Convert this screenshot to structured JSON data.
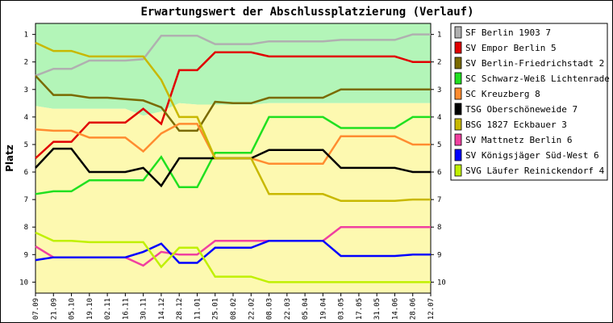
{
  "chart_data": {
    "type": "line",
    "title": "Erwartungswert der Abschlussplatzierung (Verlauf)",
    "xlabel": "",
    "ylabel": "Platz",
    "ylim": [
      0.6,
      10.4
    ],
    "y_inverted": true,
    "y_ticks": [
      "1",
      "2",
      "3",
      "4",
      "5",
      "6",
      "7",
      "8",
      "9",
      "10"
    ],
    "categories": [
      "07.09",
      "21.09",
      "05.10",
      "19.10",
      "02.11",
      "16.11",
      "30.11",
      "14.12",
      "28.12",
      "11.01",
      "25.01",
      "08.02",
      "22.02",
      "08.03",
      "22.03",
      "05.04",
      "19.04",
      "03.05",
      "17.05",
      "31.05",
      "14.06",
      "28.06",
      "12.07"
    ],
    "grid": false,
    "legend_position": "right",
    "background_zones": [
      {
        "color": "#b3f5b8",
        "upper_boundary": [
          1,
          1,
          1,
          1,
          1,
          1,
          1,
          1,
          1,
          1,
          1,
          1,
          1,
          1,
          1,
          1,
          1,
          1,
          1,
          1,
          1,
          1,
          1
        ],
        "lower_boundary": [
          3.6,
          3.7,
          3.7,
          3.7,
          3.7,
          3.7,
          3.95,
          3.8,
          3.5,
          3.55,
          3.55,
          3.55,
          3.55,
          3.5,
          3.5,
          3.5,
          3.5,
          3.5,
          3.5,
          3.5,
          3.5,
          3.5,
          3.5
        ]
      },
      {
        "color": "#fdf9b0",
        "upper_boundary": [
          3.6,
          3.7,
          3.7,
          3.7,
          3.7,
          3.7,
          3.95,
          3.8,
          3.5,
          3.55,
          3.55,
          3.55,
          3.55,
          3.5,
          3.5,
          3.5,
          3.5,
          3.5,
          3.5,
          3.5,
          3.5,
          3.5,
          3.5
        ],
        "lower_boundary": [
          10,
          10,
          10,
          10,
          10,
          10,
          10,
          10,
          10,
          10,
          10,
          10,
          10,
          10,
          10,
          10,
          10,
          10,
          10,
          10,
          10,
          10,
          10
        ]
      }
    ],
    "series": [
      {
        "name": "SF Berlin 1903 7",
        "color": "#b0b0b0",
        "values": [
          2.5,
          2.25,
          2.25,
          1.95,
          1.95,
          1.95,
          1.9,
          1.05,
          1.05,
          1.05,
          1.35,
          1.35,
          1.35,
          1.25,
          1.25,
          1.25,
          1.25,
          1.2,
          1.2,
          1.2,
          1.2,
          1.0,
          1.0
        ]
      },
      {
        "name": "SV Empor Berlin 5",
        "color": "#e00000",
        "values": [
          5.5,
          4.9,
          4.9,
          4.2,
          4.2,
          4.2,
          3.7,
          4.25,
          2.3,
          2.3,
          1.65,
          1.65,
          1.65,
          1.8,
          1.8,
          1.8,
          1.8,
          1.8,
          1.8,
          1.8,
          1.8,
          2.0,
          2.0
        ]
      },
      {
        "name": "SV Berlin-Friedrichstadt 2",
        "color": "#7a6a00",
        "values": [
          2.5,
          3.2,
          3.2,
          3.3,
          3.3,
          3.35,
          3.4,
          3.65,
          4.5,
          4.5,
          3.45,
          3.5,
          3.5,
          3.3,
          3.3,
          3.3,
          3.3,
          3.0,
          3.0,
          3.0,
          3.0,
          3.0,
          3.0
        ]
      },
      {
        "name": "SC Schwarz-Weiß Lichtenrade 4",
        "color": "#20e020",
        "values": [
          6.8,
          6.7,
          6.7,
          6.3,
          6.3,
          6.3,
          6.3,
          5.45,
          6.55,
          6.55,
          5.3,
          5.3,
          5.3,
          4.0,
          4.0,
          4.0,
          4.0,
          4.4,
          4.4,
          4.4,
          4.4,
          4.0,
          4.0
        ]
      },
      {
        "name": "SC Kreuzberg 8",
        "color": "#ff8c30",
        "values": [
          4.45,
          4.5,
          4.5,
          4.75,
          4.75,
          4.75,
          5.25,
          4.6,
          4.25,
          4.25,
          5.5,
          5.5,
          5.5,
          5.7,
          5.7,
          5.7,
          5.7,
          4.7,
          4.7,
          4.7,
          4.7,
          5.0,
          5.0
        ]
      },
      {
        "name": "TSG Oberschöneweide 7",
        "color": "#000000",
        "values": [
          5.85,
          5.15,
          5.15,
          6.0,
          6.0,
          6.0,
          5.85,
          6.5,
          5.5,
          5.5,
          5.5,
          5.5,
          5.5,
          5.2,
          5.2,
          5.2,
          5.2,
          5.85,
          5.85,
          5.85,
          5.85,
          6.0,
          6.0
        ]
      },
      {
        "name": "BSG 1827 Eckbauer 3",
        "color": "#c8b800",
        "values": [
          1.3,
          1.6,
          1.6,
          1.8,
          1.8,
          1.8,
          1.8,
          2.65,
          4.0,
          4.0,
          5.5,
          5.5,
          5.5,
          6.8,
          6.8,
          6.8,
          6.8,
          7.05,
          7.05,
          7.05,
          7.05,
          7.0,
          7.0
        ]
      },
      {
        "name": "SV Mattnetz Berlin 6",
        "color": "#f040a0",
        "values": [
          8.7,
          9.1,
          9.1,
          9.1,
          9.1,
          9.1,
          9.4,
          8.9,
          9.0,
          9.0,
          8.5,
          8.5,
          8.5,
          8.5,
          8.5,
          8.5,
          8.5,
          8.0,
          8.0,
          8.0,
          8.0,
          8.0,
          8.0
        ]
      },
      {
        "name": "SV Königsjäger Süd-West 6",
        "color": "#0000ff",
        "values": [
          9.2,
          9.1,
          9.1,
          9.1,
          9.1,
          9.1,
          8.9,
          8.6,
          9.3,
          9.3,
          8.75,
          8.75,
          8.75,
          8.5,
          8.5,
          8.5,
          8.5,
          9.05,
          9.05,
          9.05,
          9.05,
          9.0,
          9.0
        ]
      },
      {
        "name": "SVG Läufer Reinickendorf 4",
        "color": "#c0f000",
        "values": [
          8.2,
          8.5,
          8.5,
          8.55,
          8.55,
          8.55,
          8.55,
          9.45,
          8.75,
          8.75,
          9.8,
          9.8,
          9.8,
          10.0,
          10.0,
          10.0,
          10.0,
          10.0,
          10.0,
          10.0,
          10.0,
          10.0,
          10.0
        ]
      }
    ]
  }
}
